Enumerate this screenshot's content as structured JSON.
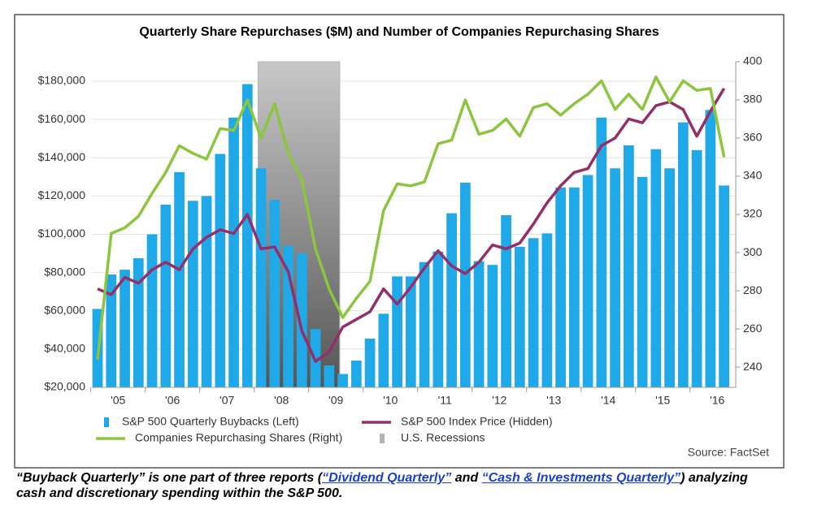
{
  "chart_data": {
    "type": "bar-line",
    "title": "Quarterly Share Repurchases ($M) and Number of Companies Repurchasing Shares",
    "x": [
      2005.125,
      2005.375,
      2005.625,
      2005.875,
      2006.125,
      2006.375,
      2006.625,
      2006.875,
      2007.125,
      2007.375,
      2007.625,
      2007.875,
      2008.125,
      2008.375,
      2008.625,
      2008.875,
      2009.125,
      2009.375,
      2009.625,
      2009.875,
      2010.125,
      2010.375,
      2010.625,
      2010.875,
      2011.125,
      2011.375,
      2011.625,
      2011.875,
      2012.125,
      2012.375,
      2012.625,
      2012.875,
      2013.125,
      2013.375,
      2013.625,
      2013.875,
      2014.125,
      2014.375,
      2014.625,
      2014.875,
      2015.125,
      2015.375,
      2015.625,
      2015.875,
      2016.125,
      2016.375,
      2016.625
    ],
    "xlim": [
      2005.02,
      2016.84
    ],
    "xticks": [
      {
        "value": 2005.5,
        "label": "'05"
      },
      {
        "value": 2006.5,
        "label": "'06"
      },
      {
        "value": 2007.5,
        "label": "'07"
      },
      {
        "value": 2008.5,
        "label": "'08"
      },
      {
        "value": 2009.5,
        "label": "'09"
      },
      {
        "value": 2010.5,
        "label": "'10"
      },
      {
        "value": 2011.5,
        "label": "'11"
      },
      {
        "value": 2012.5,
        "label": "'12"
      },
      {
        "value": 2013.5,
        "label": "'13"
      },
      {
        "value": 2014.5,
        "label": "'14"
      },
      {
        "value": 2015.5,
        "label": "'15"
      },
      {
        "value": 2016.5,
        "label": "'16"
      }
    ],
    "ylim": [
      20000,
      190200
    ],
    "yticks": [
      {
        "value": 20000,
        "label": "$20,000"
      },
      {
        "value": 40000,
        "label": "$40,000"
      },
      {
        "value": 60000,
        "label": "$60,000"
      },
      {
        "value": 80000,
        "label": "$80,000"
      },
      {
        "value": 100000,
        "label": "$100,000"
      },
      {
        "value": 120000,
        "label": "$120,000"
      },
      {
        "value": 140000,
        "label": "$140,000"
      },
      {
        "value": 160000,
        "label": "$160,000"
      },
      {
        "value": 180000,
        "label": "$180,000"
      }
    ],
    "y2lim": [
      229.4,
      400
    ],
    "y2ticks": [
      240,
      260,
      280,
      300,
      320,
      340,
      360,
      380,
      400
    ],
    "grid": true,
    "series": [
      {
        "name": "S&P 500 Quarterly Buybacks (Left)",
        "type": "bar",
        "color": "#1fa9e8",
        "values": [
          61000,
          79000,
          81500,
          87500,
          100000,
          115500,
          132500,
          117500,
          120000,
          142000,
          161000,
          178500,
          134500,
          118000,
          94000,
          90000,
          50500,
          31500,
          27000,
          34000,
          45500,
          58500,
          78000,
          78000,
          85500,
          91000,
          111000,
          127000,
          86000,
          84000,
          110000,
          93500,
          98000,
          100500,
          124500,
          124500,
          131000,
          161000,
          134500,
          146500,
          130000,
          144500,
          134500,
          158500,
          144000,
          165000,
          125500
        ]
      },
      {
        "name": "S&P 500 Index Price (Hidden)",
        "type": "line",
        "axis": "y2",
        "color": "#93306a",
        "values": [
          281,
          278,
          287,
          284,
          291,
          295,
          291,
          302,
          308,
          312,
          310,
          320,
          302,
          303,
          290,
          259,
          243,
          248,
          261,
          265,
          269,
          281,
          273,
          282,
          292,
          301,
          293,
          289,
          295,
          304,
          302,
          305,
          315,
          326,
          335,
          342,
          344,
          356,
          360,
          370,
          368,
          377,
          379,
          375,
          361,
          374,
          386
        ]
      },
      {
        "name": "Companies Repurchasing Shares (Right)",
        "type": "line",
        "axis": "y2",
        "color": "#8cc63f",
        "values": [
          244,
          310,
          313,
          319,
          331,
          342,
          356,
          352,
          349,
          365,
          364,
          380,
          360,
          378,
          352,
          338,
          302,
          281,
          266,
          276,
          285,
          322,
          336,
          335,
          337,
          357,
          359,
          380,
          362,
          364,
          370,
          361,
          376,
          378,
          372,
          378,
          383,
          390,
          375,
          383,
          375,
          392,
          379,
          390,
          385,
          386,
          350
        ]
      }
    ],
    "recession": {
      "name": "U.S. Recessions",
      "color": "#b5b5b5",
      "range": [
        2008.07,
        2009.57
      ]
    },
    "source": "Source: FactSet"
  },
  "caption": [
    "“Buyback Quarterly”",
    " is one part of three reports (",
    "“Dividend Quarterly”",
    " and ",
    "“Cash & Investments Quarterly”",
    ") analyzing",
    "cash and discretionary spending within the S&P 500."
  ]
}
